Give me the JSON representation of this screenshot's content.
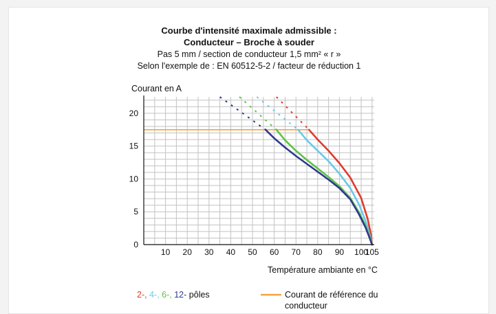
{
  "chart_data": {
    "type": "line",
    "title": "Courbe d'intensité maximale admissible :",
    "subtitle_lines": [
      "Conducteur – Broche à souder",
      "Pas 5 mm / section de conducteur  1,5 mm² « r »",
      "Selon l'exemple de : EN 60512-5-2 / facteur de réduction 1"
    ],
    "ylabel": "Courant en A",
    "xlabel": "Température ambiante en °C",
    "xlim": [
      0,
      106
    ],
    "ylim": [
      0,
      22.5
    ],
    "x_ticks": [
      10,
      20,
      30,
      40,
      50,
      60,
      70,
      80,
      90,
      100,
      105
    ],
    "y_ticks": [
      0,
      5,
      10,
      15,
      20
    ],
    "grid": true,
    "series": [
      {
        "name": "2-",
        "color": "#e03a2b",
        "dashed": [
          [
            61,
            22.5
          ],
          [
            76,
            17.5
          ]
        ],
        "points": [
          [
            76,
            17.5
          ],
          [
            80,
            16
          ],
          [
            85,
            14.3
          ],
          [
            90,
            12.4
          ],
          [
            95,
            10.2
          ],
          [
            100,
            7.1
          ],
          [
            103,
            3.9
          ],
          [
            104.5,
            1.5
          ],
          [
            105,
            0
          ]
        ]
      },
      {
        "name": "4-",
        "color": "#6cc8e8",
        "dashed": [
          [
            52,
            22.5
          ],
          [
            71,
            17.5
          ]
        ],
        "points": [
          [
            71,
            17.5
          ],
          [
            75,
            15.9
          ],
          [
            80,
            14.3
          ],
          [
            85,
            12.7
          ],
          [
            90,
            10.8
          ],
          [
            95,
            8.6
          ],
          [
            99,
            6.1
          ],
          [
            102,
            3.6
          ],
          [
            104,
            1.4
          ],
          [
            105,
            0
          ]
        ]
      },
      {
        "name": "6-",
        "color": "#5fc246",
        "dashed": [
          [
            44,
            22.5
          ],
          [
            61,
            17.5
          ]
        ],
        "points": [
          [
            61,
            17.5
          ],
          [
            65,
            15.9
          ],
          [
            70,
            14.3
          ],
          [
            75,
            12.9
          ],
          [
            80,
            11.6
          ],
          [
            85,
            10.3
          ],
          [
            90,
            8.9
          ],
          [
            95,
            7.1
          ],
          [
            99,
            4.9
          ],
          [
            102,
            2.9
          ],
          [
            104,
            1.1
          ],
          [
            105,
            0
          ]
        ]
      },
      {
        "name": "12-",
        "color": "#2d3a8e",
        "dashed": [
          [
            35,
            22.5
          ],
          [
            56,
            17.5
          ]
        ],
        "points": [
          [
            56,
            17.5
          ],
          [
            60,
            16.2
          ],
          [
            65,
            14.8
          ],
          [
            70,
            13.5
          ],
          [
            75,
            12.3
          ],
          [
            80,
            11.1
          ],
          [
            85,
            9.9
          ],
          [
            90,
            8.6
          ],
          [
            95,
            6.9
          ],
          [
            99,
            4.6
          ],
          [
            102,
            2.6
          ],
          [
            104,
            0.9
          ],
          [
            105,
            0
          ]
        ]
      }
    ],
    "reference_line": {
      "name": "Courant de référence du conducteur",
      "color": "#f6a23c",
      "y": 17.5,
      "x_from": 0,
      "x_to": 76
    },
    "legend": {
      "series_labels": [
        "2-",
        "4-",
        "6-",
        "12-"
      ],
      "series_suffix": "pôles",
      "separator": ", ",
      "reference_lines": [
        "Courant de référence du",
        "conducteur"
      ]
    }
  }
}
